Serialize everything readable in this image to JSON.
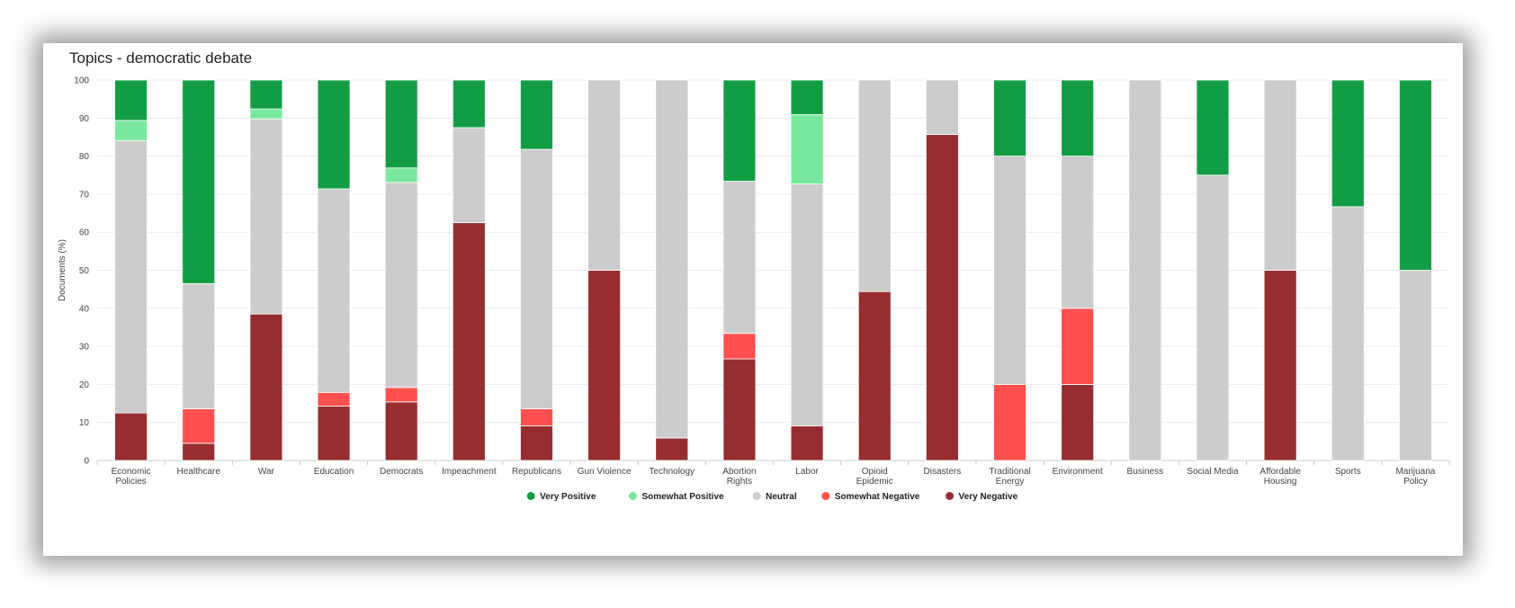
{
  "chart_data": {
    "type": "bar",
    "stacked": true,
    "title": "Topics - democratic debate",
    "xlabel": "",
    "ylabel": "Documents (%)",
    "ylim": [
      0,
      100
    ],
    "yticks": [
      0,
      10,
      20,
      30,
      40,
      50,
      60,
      70,
      80,
      90,
      100
    ],
    "grid": true,
    "legend_position": "bottom",
    "categories": [
      "Economic Policies",
      "Healthcare",
      "War",
      "Education",
      "Democrats",
      "Impeachment",
      "Republicans",
      "Gun Violence",
      "Technology",
      "Abortion Rights",
      "Labor",
      "Opioid Epidemic",
      "Disasters",
      "Traditional Energy",
      "Environment",
      "Business",
      "Social Media",
      "Affordable Housing",
      "Sports",
      "Marijuana Policy"
    ],
    "series": [
      {
        "name": "Very Negative",
        "color": "#962e31",
        "values": [
          12.5,
          4.5,
          38.5,
          14.3,
          15.4,
          62.5,
          9.1,
          50,
          5.9,
          26.7,
          9.1,
          44.4,
          85.7,
          0,
          20,
          0,
          0,
          50,
          0,
          0
        ]
      },
      {
        "name": "Somewhat Negative",
        "color": "#ff5050",
        "values": [
          0,
          9.1,
          0,
          3.6,
          3.8,
          0,
          4.5,
          0,
          0,
          6.7,
          0,
          0,
          0,
          20,
          20,
          0,
          0,
          0,
          0,
          0
        ]
      },
      {
        "name": "Neutral",
        "color": "#cccccc",
        "values": [
          71.6,
          32.9,
          51.3,
          53.5,
          53.9,
          25,
          68.2,
          50,
          94.1,
          40,
          63.6,
          55.6,
          14.3,
          60,
          40,
          100,
          75,
          50,
          66.7,
          50
        ]
      },
      {
        "name": "Somewhat Positive",
        "color": "#79e89e",
        "values": [
          5.3,
          0,
          2.6,
          0,
          3.8,
          0,
          0,
          0,
          0,
          0,
          18.2,
          0,
          0,
          0,
          0,
          0,
          0,
          0,
          0,
          0
        ]
      },
      {
        "name": "Very Positive",
        "color": "#129d45",
        "values": [
          10.6,
          53.5,
          7.6,
          28.6,
          23.1,
          12.5,
          18.2,
          0,
          0,
          26.6,
          9.1,
          0,
          0,
          20,
          20,
          0,
          25,
          0,
          33.3,
          50
        ]
      }
    ],
    "legend_order": [
      "Very Positive",
      "Somewhat Positive",
      "Neutral",
      "Somewhat Negative",
      "Very Negative"
    ]
  }
}
